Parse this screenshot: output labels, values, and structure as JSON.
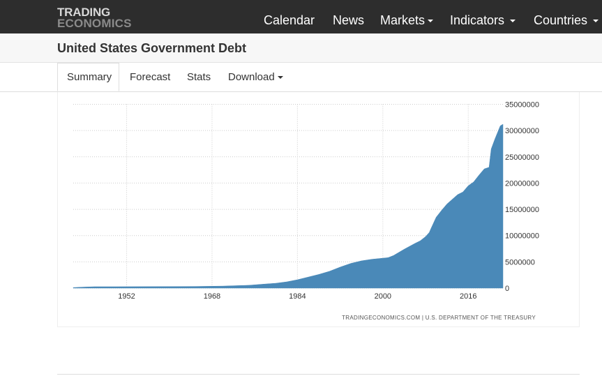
{
  "header": {
    "logo_line1": "TRADING",
    "logo_line2": "ECONOMICS",
    "nav": [
      "Calendar",
      "News",
      "Markets",
      "Indicators",
      "Countries"
    ]
  },
  "page": {
    "title": "United States Government Debt"
  },
  "tabs": [
    "Summary",
    "Forecast",
    "Stats",
    "Download"
  ],
  "colors": {
    "area": "#4a89b8",
    "grid": "#cccccc",
    "topbar": "#2d2d2d"
  },
  "chart_data": {
    "type": "area",
    "title": "",
    "xlabel": "",
    "ylabel": "",
    "grid": true,
    "legend": "none",
    "xlim": [
      1942,
      2022.5
    ],
    "ylim": [
      0,
      35000000
    ],
    "x_ticks": [
      "1952",
      "1968",
      "1984",
      "2000",
      "2016"
    ],
    "y_ticks": [
      "35000000",
      "30000000",
      "25000000",
      "20000000",
      "15000000",
      "10000000",
      "5000000",
      "0"
    ],
    "series": [
      {
        "x": [
          1942,
          1944,
          1946,
          1950,
          1955,
          1960,
          1965,
          1970,
          1975,
          1978,
          1980,
          1982,
          1984,
          1986,
          1988,
          1990,
          1992,
          1994,
          1996,
          1998,
          2000,
          2001,
          2002,
          2004,
          2006,
          2007,
          2008,
          2008.7,
          2009,
          2010,
          2011,
          2012,
          2013,
          2014,
          2015,
          2016,
          2017,
          2018,
          2019,
          2019.9,
          2020.3,
          2021,
          2022,
          2022.5
        ],
        "values": [
          100000,
          200000,
          270000,
          260000,
          280000,
          290000,
          320000,
          380000,
          550000,
          780000,
          930000,
          1200000,
          1600000,
          2100000,
          2600000,
          3200000,
          4000000,
          4700000,
          5200000,
          5500000,
          5700000,
          5800000,
          6200000,
          7400000,
          8500000,
          9000000,
          9800000,
          10600000,
          11300000,
          13500000,
          14800000,
          16000000,
          16900000,
          17800000,
          18300000,
          19500000,
          20200000,
          21500000,
          22700000,
          23000000,
          26500000,
          28400000,
          30900000,
          31200000
        ]
      }
    ],
    "credit": "TRADINGECONOMICS.COM  |  U.S. DEPARTMENT OF THE TREASURY"
  }
}
